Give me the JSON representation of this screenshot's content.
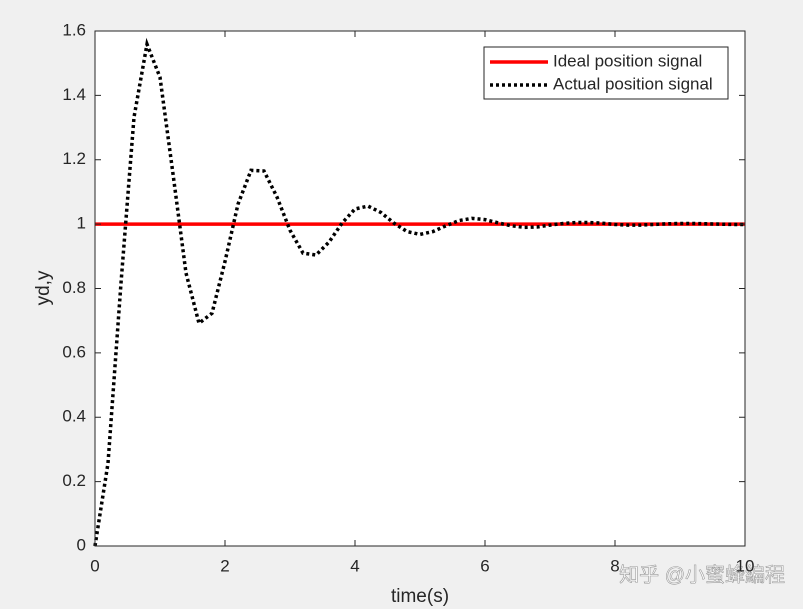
{
  "chart_data": {
    "type": "line",
    "xlabel": "time(s)",
    "ylabel": "yd,y",
    "xlim": [
      0,
      10
    ],
    "xticks": [
      0,
      2,
      4,
      6,
      8,
      10
    ],
    "ylim": [
      0,
      1.6
    ],
    "yticks": [
      0,
      0.2,
      0.4,
      0.6,
      0.8,
      1,
      1.2,
      1.4,
      1.6
    ],
    "grid": false,
    "legend_position": "upper-right",
    "series": [
      {
        "name": "Ideal position signal",
        "color": "#ff0000",
        "dash": "solid",
        "x": [
          0,
          10
        ],
        "values": [
          1,
          1
        ]
      },
      {
        "name": "Actual position signal",
        "color": "#000000",
        "dash": "dotted",
        "x": [
          0,
          0.2,
          0.4,
          0.6,
          0.8,
          1.0,
          1.2,
          1.4,
          1.6,
          1.8,
          2.0,
          2.2,
          2.4,
          2.6,
          2.8,
          3.0,
          3.2,
          3.4,
          3.6,
          3.8,
          4.0,
          4.2,
          4.4,
          4.6,
          4.8,
          5.0,
          5.2,
          5.4,
          5.6,
          5.8,
          6.0,
          6.2,
          6.4,
          6.6,
          6.8,
          7.0,
          7.2,
          7.4,
          7.6,
          7.8,
          8.0,
          8.2,
          8.4,
          8.6,
          8.8,
          9.0,
          9.2,
          9.4,
          9.6,
          9.8,
          10.0
        ],
        "values": [
          0,
          0.257,
          0.817,
          1.332,
          1.559,
          1.456,
          1.156,
          0.848,
          0.692,
          0.723,
          0.884,
          1.062,
          1.167,
          1.165,
          1.084,
          0.981,
          0.91,
          0.904,
          0.944,
          1.003,
          1.047,
          1.056,
          1.036,
          1.003,
          0.977,
          0.968,
          0.977,
          0.995,
          1.011,
          1.018,
          1.014,
          1.004,
          0.995,
          0.99,
          0.991,
          0.997,
          1.002,
          1.005,
          1.005,
          1.003,
          0.999,
          0.997,
          0.997,
          0.999,
          1.001,
          1.002,
          1.002,
          1.001,
          1.0,
          0.999,
          0.999
        ]
      }
    ],
    "watermark": "知乎 @小蜜蜂編程"
  }
}
